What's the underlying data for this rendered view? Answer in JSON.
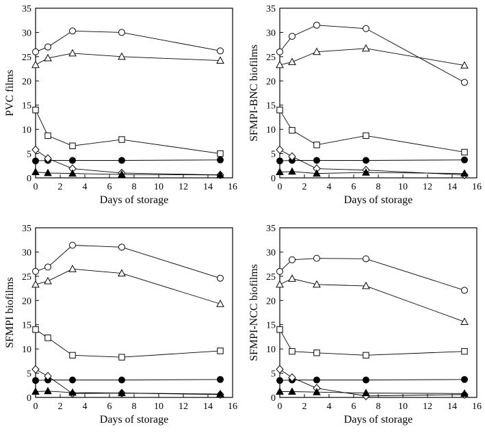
{
  "chart_data": [
    {
      "type": "line",
      "title": "",
      "xlabel": "Days of storage",
      "ylabel": "PVC films",
      "xlim": [
        0,
        16
      ],
      "ylim": [
        0,
        35
      ],
      "xticks": [
        "0",
        "2",
        "4",
        "6",
        "8",
        "10",
        "12",
        "14",
        "16"
      ],
      "yticks": [
        "0",
        "5",
        "10",
        "15",
        "20",
        "25",
        "30",
        "35"
      ],
      "x": [
        0,
        1,
        3,
        7,
        15
      ],
      "series": [
        {
          "name": "open-circle",
          "marker": "circle",
          "filled": false,
          "values": [
            26.0,
            27.0,
            30.3,
            30.0,
            26.2
          ]
        },
        {
          "name": "open-triangle",
          "marker": "triangle",
          "filled": false,
          "values": [
            23.3,
            24.7,
            25.7,
            25.0,
            24.2
          ]
        },
        {
          "name": "open-square",
          "marker": "square",
          "filled": false,
          "values": [
            14.0,
            8.7,
            6.6,
            7.9,
            5.0
          ]
        },
        {
          "name": "filled-circle",
          "marker": "circle",
          "filled": true,
          "values": [
            3.5,
            3.6,
            3.6,
            3.6,
            3.7
          ]
        },
        {
          "name": "open-diamond",
          "marker": "diamond",
          "filled": false,
          "values": [
            5.8,
            4.0,
            1.9,
            1.0,
            0.6
          ]
        },
        {
          "name": "filled-triangle",
          "marker": "triangle",
          "filled": true,
          "values": [
            1.2,
            1.0,
            0.9,
            0.7,
            0.6
          ]
        }
      ]
    },
    {
      "type": "line",
      "title": "",
      "xlabel": "Days of storage",
      "ylabel": "SFMPI-BNC biofilms",
      "xlim": [
        0,
        16
      ],
      "ylim": [
        0,
        35
      ],
      "xticks": [
        "0",
        "2",
        "4",
        "6",
        "8",
        "10",
        "12",
        "14",
        "16"
      ],
      "yticks": [
        "0",
        "5",
        "10",
        "15",
        "20",
        "25",
        "30",
        "35"
      ],
      "x": [
        0,
        1,
        3,
        7,
        15
      ],
      "series": [
        {
          "name": "open-circle",
          "marker": "circle",
          "filled": false,
          "values": [
            26.0,
            29.2,
            31.5,
            30.8,
            19.7
          ]
        },
        {
          "name": "open-triangle",
          "marker": "triangle",
          "filled": false,
          "values": [
            23.3,
            23.9,
            26.0,
            26.7,
            23.2
          ]
        },
        {
          "name": "open-square",
          "marker": "square",
          "filled": false,
          "values": [
            14.0,
            9.8,
            6.8,
            8.7,
            5.3
          ]
        },
        {
          "name": "filled-circle",
          "marker": "circle",
          "filled": true,
          "values": [
            3.5,
            3.6,
            3.6,
            3.6,
            3.7
          ]
        },
        {
          "name": "open-diamond",
          "marker": "diamond",
          "filled": false,
          "values": [
            5.8,
            4.4,
            1.9,
            1.6,
            0.6
          ]
        },
        {
          "name": "filled-triangle",
          "marker": "triangle",
          "filled": true,
          "values": [
            1.2,
            1.3,
            0.9,
            1.1,
            0.9
          ]
        }
      ]
    },
    {
      "type": "line",
      "title": "",
      "xlabel": "Days of storage",
      "ylabel": "SFMPI biofilms",
      "xlim": [
        0,
        16
      ],
      "ylim": [
        0,
        35
      ],
      "xticks": [
        "0",
        "2",
        "4",
        "6",
        "8",
        "10",
        "12",
        "14",
        "16"
      ],
      "yticks": [
        "0",
        "5",
        "10",
        "15",
        "20",
        "25",
        "30",
        "35"
      ],
      "x": [
        0,
        1,
        3,
        7,
        15
      ],
      "series": [
        {
          "name": "open-circle",
          "marker": "circle",
          "filled": false,
          "values": [
            26.0,
            26.9,
            31.4,
            31.0,
            24.6
          ]
        },
        {
          "name": "open-triangle",
          "marker": "triangle",
          "filled": false,
          "values": [
            23.3,
            24.0,
            26.5,
            25.6,
            19.3
          ]
        },
        {
          "name": "open-square",
          "marker": "square",
          "filled": false,
          "values": [
            14.0,
            12.3,
            8.7,
            8.3,
            9.6
          ]
        },
        {
          "name": "filled-circle",
          "marker": "circle",
          "filled": true,
          "values": [
            3.5,
            3.6,
            3.6,
            3.6,
            3.7
          ]
        },
        {
          "name": "open-diamond",
          "marker": "diamond",
          "filled": false,
          "values": [
            5.8,
            4.4,
            0.8,
            0.9,
            0.6
          ]
        },
        {
          "name": "filled-triangle",
          "marker": "triangle",
          "filled": true,
          "values": [
            1.2,
            1.3,
            1.0,
            0.9,
            0.7
          ]
        }
      ]
    },
    {
      "type": "line",
      "title": "",
      "xlabel": "Days of storage",
      "ylabel": "SFMPI-NCC biofilms",
      "xlim": [
        0,
        16
      ],
      "ylim": [
        0,
        35
      ],
      "xticks": [
        "0",
        "2",
        "4",
        "6",
        "8",
        "10",
        "12",
        "14",
        "16"
      ],
      "yticks": [
        "0",
        "5",
        "10",
        "15",
        "20",
        "25",
        "30",
        "35"
      ],
      "x": [
        0,
        1,
        3,
        7,
        15
      ],
      "series": [
        {
          "name": "open-circle",
          "marker": "circle",
          "filled": false,
          "values": [
            26.0,
            28.4,
            28.7,
            28.6,
            22.1
          ]
        },
        {
          "name": "open-triangle",
          "marker": "triangle",
          "filled": false,
          "values": [
            23.3,
            24.5,
            23.3,
            23.0,
            15.6
          ]
        },
        {
          "name": "open-square",
          "marker": "square",
          "filled": false,
          "values": [
            14.0,
            9.5,
            9.2,
            8.7,
            9.5
          ]
        },
        {
          "name": "filled-circle",
          "marker": "circle",
          "filled": true,
          "values": [
            3.5,
            3.6,
            3.6,
            3.6,
            3.7
          ]
        },
        {
          "name": "open-diamond",
          "marker": "diamond",
          "filled": false,
          "values": [
            5.8,
            4.1,
            1.9,
            0.3,
            0.6
          ]
        },
        {
          "name": "filled-triangle",
          "marker": "triangle",
          "filled": true,
          "values": [
            1.2,
            1.2,
            1.1,
            0.9,
            0.8
          ]
        }
      ]
    }
  ]
}
